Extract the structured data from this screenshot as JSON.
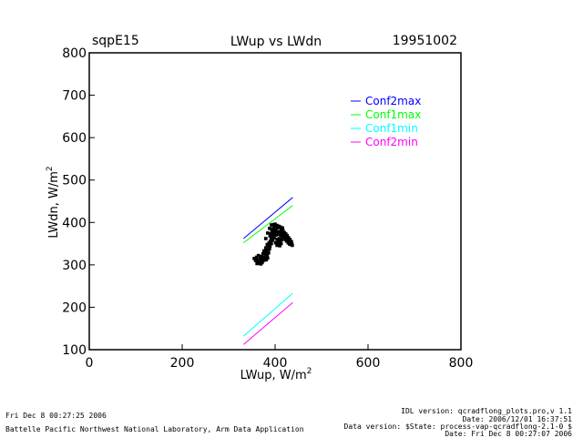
{
  "header": {
    "site": "sqpE15",
    "title": "LWup vs LWdn",
    "date": "19951002"
  },
  "chart_data": {
    "type": "scatter",
    "title": "LWup vs LWdn",
    "xlabel": "LWup, W/m",
    "xlabel_sup": "2",
    "ylabel": "LWdn, W/m",
    "ylabel_sup": "2",
    "xlim": [
      0,
      800
    ],
    "ylim": [
      100,
      800
    ],
    "xticks": [
      "0",
      "200",
      "400",
      "600",
      "800"
    ],
    "yticks": [
      "100",
      "200",
      "300",
      "400",
      "500",
      "600",
      "700",
      "800"
    ],
    "grid": false,
    "legend_position": "top-right",
    "lines": [
      {
        "name": "Conf2max",
        "color": "#0000ff",
        "x": [
          332,
          438
        ],
        "y": [
          362,
          459
        ]
      },
      {
        "name": "Conf1max",
        "color": "#00ff00",
        "x": [
          332,
          438
        ],
        "y": [
          352,
          440
        ]
      },
      {
        "name": "Conf1min",
        "color": "#00ffff",
        "x": [
          332,
          438
        ],
        "y": [
          132,
          233
        ]
      },
      {
        "name": "Conf2min",
        "color": "#ff00ff",
        "x": [
          332,
          438
        ],
        "y": [
          112,
          211
        ]
      }
    ],
    "observed": {
      "color": "#000000",
      "points": [
        [
          355,
          315
        ],
        [
          358,
          310
        ],
        [
          360,
          318
        ],
        [
          362,
          312
        ],
        [
          364,
          322
        ],
        [
          366,
          308
        ],
        [
          368,
          316
        ],
        [
          370,
          313
        ],
        [
          371,
          320
        ],
        [
          373,
          309
        ],
        [
          374,
          326
        ],
        [
          375,
          317
        ],
        [
          377,
          311
        ],
        [
          378,
          330
        ],
        [
          379,
          318
        ],
        [
          381,
          312
        ],
        [
          382,
          335
        ],
        [
          383,
          322
        ],
        [
          384,
          316
        ],
        [
          385,
          345
        ],
        [
          386,
          328
        ],
        [
          387,
          352
        ],
        [
          388,
          338
        ],
        [
          389,
          368
        ],
        [
          390,
          356
        ],
        [
          391,
          373
        ],
        [
          392,
          361
        ],
        [
          393,
          380
        ],
        [
          394,
          366
        ],
        [
          395,
          385
        ],
        [
          396,
          372
        ],
        [
          397,
          379
        ],
        [
          398,
          388
        ],
        [
          399,
          376
        ],
        [
          400,
          382
        ],
        [
          401,
          392
        ],
        [
          402,
          370
        ],
        [
          403,
          386
        ],
        [
          404,
          360
        ],
        [
          405,
          378
        ],
        [
          406,
          350
        ],
        [
          407,
          372
        ],
        [
          408,
          388
        ],
        [
          409,
          362
        ],
        [
          410,
          378
        ],
        [
          411,
          355
        ],
        [
          412,
          370
        ],
        [
          413,
          383
        ],
        [
          414,
          359
        ],
        [
          415,
          375
        ],
        [
          416,
          366
        ],
        [
          417,
          381
        ],
        [
          418,
          371
        ],
        [
          419,
          363
        ],
        [
          420,
          376
        ],
        [
          421,
          368
        ],
        [
          422,
          359
        ],
        [
          423,
          373
        ],
        [
          424,
          365
        ],
        [
          425,
          356
        ],
        [
          426,
          369
        ],
        [
          427,
          361
        ],
        [
          428,
          352
        ],
        [
          429,
          364
        ],
        [
          430,
          357
        ],
        [
          431,
          349
        ],
        [
          432,
          360
        ],
        [
          433,
          353
        ],
        [
          434,
          348
        ],
        [
          435,
          355
        ],
        [
          436,
          350
        ],
        [
          437,
          346
        ],
        [
          380,
          340
        ],
        [
          383,
          348
        ],
        [
          386,
          336
        ],
        [
          389,
          344
        ],
        [
          392,
          350
        ],
        [
          395,
          358
        ],
        [
          398,
          364
        ],
        [
          401,
          352
        ],
        [
          404,
          346
        ],
        [
          407,
          354
        ],
        [
          410,
          345
        ],
        [
          413,
          350
        ],
        [
          376,
          333
        ],
        [
          379,
          325
        ],
        [
          382,
          331
        ],
        [
          372,
          305
        ],
        [
          369,
          302
        ],
        [
          366,
          304
        ],
        [
          363,
          307
        ],
        [
          361,
          303
        ],
        [
          392,
          394
        ],
        [
          396,
          395
        ],
        [
          400,
          396
        ],
        [
          404,
          393
        ],
        [
          408,
          391
        ],
        [
          412,
          389
        ],
        [
          416,
          387
        ],
        [
          388,
          386
        ],
        [
          384,
          375
        ],
        [
          380,
          362
        ]
      ]
    }
  },
  "footer": {
    "left_line1": "Fri Dec  8 00:27:25 2006",
    "left_line2": "Battelle Pacific Northwest National Laboratory, Arm Data Application",
    "right_line1": "IDL version: qcradflong_plots.pro,v 1.1",
    "right_line2": "Date: 2006/12/01 16:37:51",
    "right_line3": "Data version: $State: process-vap-qcradflong-2.1-0 $",
    "right_line4": "Date: Fri Dec  8 00:27:07 2006"
  }
}
